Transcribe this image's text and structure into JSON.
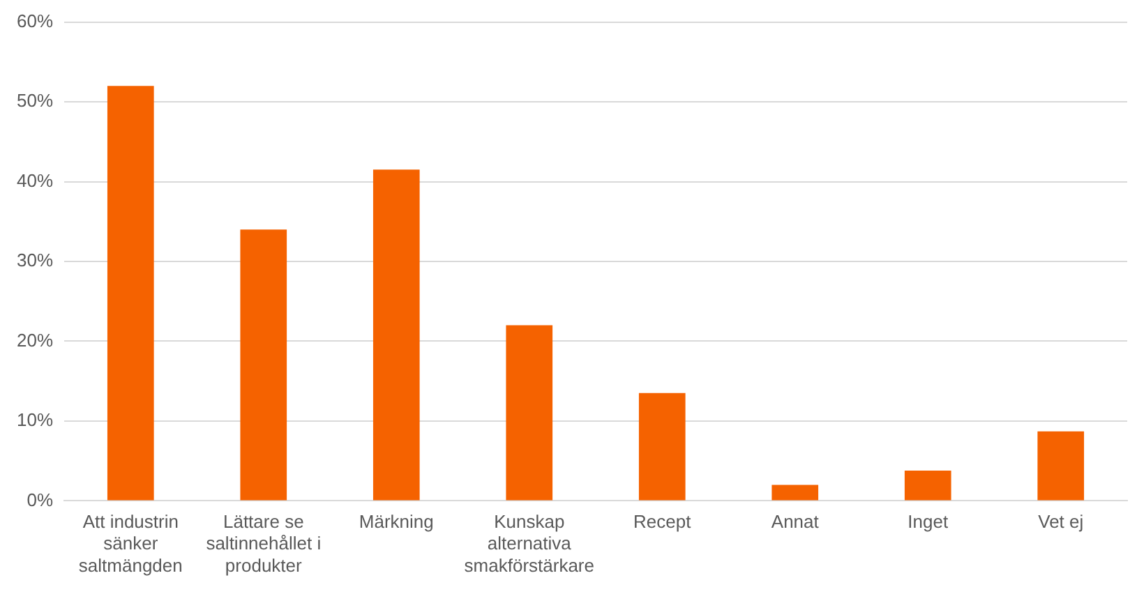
{
  "chart_data": {
    "type": "bar",
    "categories": [
      "Att industrin sänker saltmängden",
      "Lättare se saltinnehållet i produkter",
      "Märkning",
      "Kunskap alternativa smakförstärkare",
      "Recept",
      "Annat",
      "Inget",
      "Vet ej"
    ],
    "values": [
      52,
      34,
      41.5,
      22,
      13.5,
      2,
      3.8,
      8.7
    ],
    "color": "#f56200",
    "ylim": [
      0,
      60
    ],
    "yticks": [
      {
        "value": 0,
        "label": "0%"
      },
      {
        "value": 10,
        "label": "10%"
      },
      {
        "value": 20,
        "label": "20%"
      },
      {
        "value": 30,
        "label": "30%"
      },
      {
        "value": 40,
        "label": "40%"
      },
      {
        "value": 50,
        "label": "50%"
      },
      {
        "value": 60,
        "label": "60%"
      }
    ],
    "grid": "y"
  }
}
